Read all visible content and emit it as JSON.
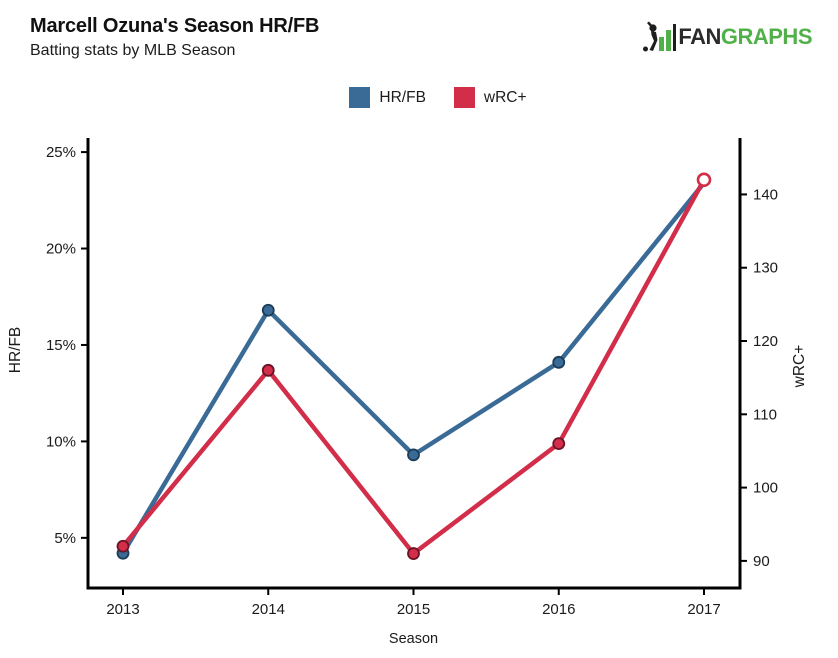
{
  "header": {
    "title": "Marcell Ozuna's Season HR/FB",
    "subtitle": "Batting stats by MLB Season"
  },
  "logo": {
    "text_dark": "FAN",
    "text_green": "GRAPHS",
    "green": "#52b04a",
    "dark": "#2b2b2b"
  },
  "legend": {
    "items": [
      {
        "label": "HR/FB",
        "color": "#3a6b96"
      },
      {
        "label": "wRC+",
        "color": "#d22d49"
      }
    ]
  },
  "chart_data": {
    "type": "line",
    "title": "Marcell Ozuna's Season HR/FB",
    "subtitle": "Batting stats by MLB Season",
    "x": [
      2013,
      2014,
      2015,
      2016,
      2017
    ],
    "x_tick_labels": [
      "2013",
      "2014",
      "2015",
      "2016",
      "2017"
    ],
    "xlabel": "Season",
    "grid": false,
    "legend_position": "top-center",
    "left_axis": {
      "label": "HR/FB",
      "tick_values": [
        25,
        20,
        15,
        10,
        5
      ],
      "tick_labels": [
        "25%",
        "20%",
        "15%",
        "10%",
        "5%"
      ],
      "range": [
        2.4,
        25.73
      ]
    },
    "right_axis": {
      "label": "wRC+",
      "tick_values": [
        140,
        130,
        120,
        110,
        100,
        90
      ],
      "tick_labels": [
        "140",
        "130",
        "120",
        "110",
        "100",
        "90"
      ],
      "range": [
        86.3,
        147.7
      ]
    },
    "series": [
      {
        "name": "HR/FB",
        "axis": "left",
        "color": "#3a6b96",
        "marker_stroke": "#1d3c57",
        "values": [
          4.2,
          16.8,
          9.3,
          14.1,
          23.4
        ],
        "last_marker": "hidden"
      },
      {
        "name": "wRC+",
        "axis": "right",
        "color": "#d22d49",
        "marker_stroke": "#6b1425",
        "values": [
          92,
          116,
          91,
          106,
          142
        ],
        "last_marker": "open"
      }
    ]
  }
}
